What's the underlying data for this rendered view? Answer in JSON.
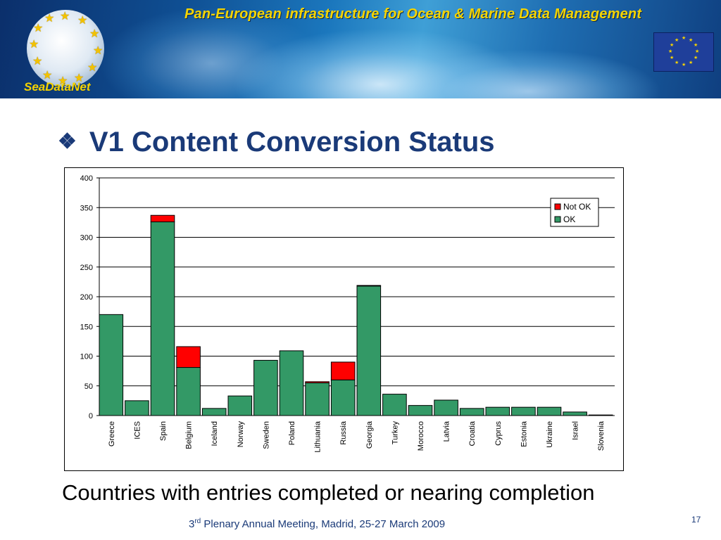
{
  "banner": {
    "title": "Pan-European infrastructure for Ocean & Marine Data Management",
    "logo_text": "SeaDataNet",
    "logo_icon": "star-circle-logo",
    "flag_icon": "eu-flag",
    "colors": {
      "title": "#f5d400",
      "sea_dark": "#0b2f6b",
      "sea_light": "#3f9fd6"
    }
  },
  "slide": {
    "bullet": "❖",
    "title": "V1 Content Conversion Status",
    "caption": "Countries with entries completed or nearing completion",
    "footer_prefix": "3",
    "footer_sup": "rd",
    "footer_rest": " Plenary Annual Meeting, Madrid, 25-27 March 2009",
    "page_number": "17",
    "title_color": "#1a3a78"
  },
  "chart_data": {
    "type": "bar",
    "stacked": true,
    "categories": [
      "Greece",
      "ICES",
      "Spain",
      "Belgium",
      "Iceland",
      "Norway",
      "Sweden",
      "Poland",
      "Lithuania",
      "Russia",
      "Georgia",
      "Turkey",
      "Morocco",
      "Latvia",
      "Croatia",
      "Cyprus",
      "Estonia",
      "Ukraine",
      "Israel",
      "Slovenia"
    ],
    "series": [
      {
        "name": "OK",
        "color": "#339966",
        "values": [
          170,
          25,
          326,
          81,
          12,
          33,
          93,
          109,
          55,
          60,
          218,
          36,
          17,
          26,
          12,
          14,
          14,
          14,
          6,
          1
        ]
      },
      {
        "name": "Not OK",
        "color": "#ff0000",
        "values": [
          0,
          0,
          11,
          35,
          0,
          0,
          0,
          0,
          2,
          30,
          1,
          0,
          0,
          0,
          0,
          0,
          0,
          0,
          0,
          0
        ]
      }
    ],
    "ylim": [
      0,
      400
    ],
    "yticks": [
      0,
      50,
      100,
      150,
      200,
      250,
      300,
      350,
      400
    ],
    "grid": true,
    "legend_position": "top-right",
    "legend_order": [
      "Not OK",
      "OK"
    ]
  }
}
